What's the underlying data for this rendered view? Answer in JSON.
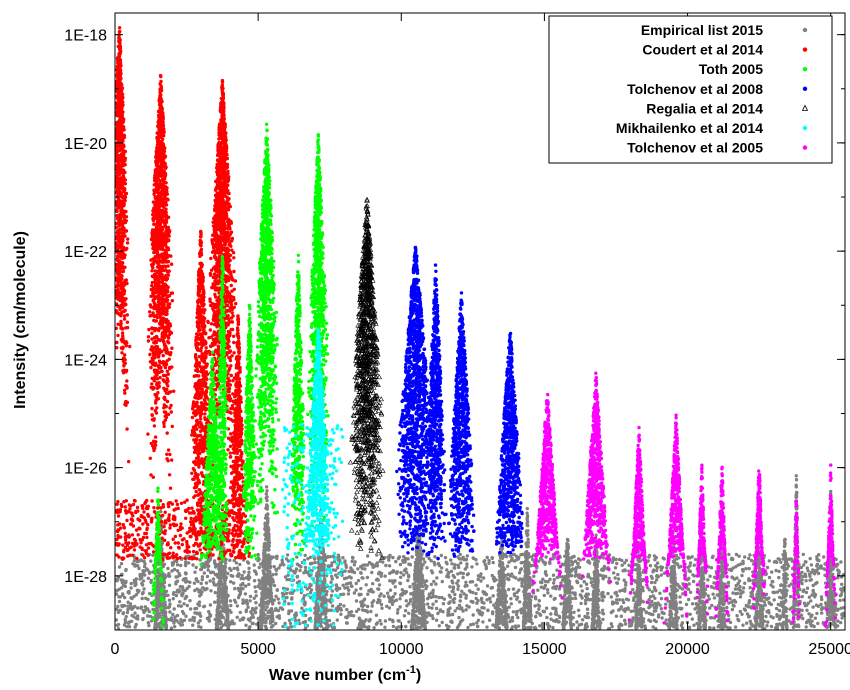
{
  "chart_data": {
    "type": "scatter",
    "title": "",
    "xlabel": "Wave number (cm",
    "xlabel_sup": "-1",
    "xlabel_end": ")",
    "ylabel": "Intensity (cm/molecule)",
    "xlim": [
      0,
      25500
    ],
    "ylim_log10": [
      -29,
      -17.6
    ],
    "y_scale": "log",
    "x_ticks": [
      0,
      5000,
      10000,
      15000,
      20000,
      25000
    ],
    "x_tick_labels": [
      "0",
      "5000",
      "10000",
      "15000",
      "20000",
      "25000"
    ],
    "y_ticks_log10": [
      -18,
      -20,
      -22,
      -24,
      -26,
      -28
    ],
    "y_tick_labels": [
      "1E-18",
      "1E-20",
      "1E-22",
      "1E-24",
      "1E-26",
      "1E-28"
    ],
    "grid": false,
    "legend_position": "top-right",
    "series": [
      {
        "name": "Empirical list 2015",
        "color": "#808080",
        "marker": "circle",
        "floor_region": [
          [
            0,
            27000,
            -29,
            -27.6
          ]
        ],
        "bands": [
          {
            "center": 1595,
            "peak_log10": -26.6,
            "width": 700
          },
          {
            "center": 3750,
            "peak_log10": -26.8,
            "width": 800
          },
          {
            "center": 5300,
            "peak_log10": -26.3,
            "width": 700
          },
          {
            "center": 7200,
            "peak_log10": -26.5,
            "width": 700
          },
          {
            "center": 10600,
            "peak_log10": -26.8,
            "width": 900
          },
          {
            "center": 13500,
            "peak_log10": -27.2,
            "width": 900
          },
          {
            "center": 14400,
            "peak_log10": -26.7,
            "width": 500
          },
          {
            "center": 15800,
            "peak_log10": -27.0,
            "width": 600
          },
          {
            "center": 16800,
            "peak_log10": -27.1,
            "width": 600
          },
          {
            "center": 18300,
            "peak_log10": -27.2,
            "width": 500
          },
          {
            "center": 19500,
            "peak_log10": -27.1,
            "width": 600
          },
          {
            "center": 20500,
            "peak_log10": -27.0,
            "width": 500
          },
          {
            "center": 21200,
            "peak_log10": -26.9,
            "width": 400
          },
          {
            "center": 22500,
            "peak_log10": -26.9,
            "width": 500
          },
          {
            "center": 23400,
            "peak_log10": -27.0,
            "width": 300
          },
          {
            "center": 23800,
            "peak_log10": -26.0,
            "width": 300
          },
          {
            "center": 25000,
            "peak_log10": -26.3,
            "width": 400
          }
        ]
      },
      {
        "name": "Coudert et al 2014",
        "color": "#ff0000",
        "marker": "circle",
        "floor_region": [
          [
            0,
            4700,
            -27.7,
            -26.6
          ]
        ],
        "bands": [
          {
            "center": 150,
            "peak_log10": -17.7,
            "width": 700
          },
          {
            "center": 1595,
            "peak_log10": -18.7,
            "width": 900
          },
          {
            "center": 3750,
            "peak_log10": -18.8,
            "width": 1000
          },
          {
            "center": 3000,
            "peak_log10": -21.5,
            "width": 700
          },
          {
            "center": 4300,
            "peak_log10": -23.0,
            "width": 500
          }
        ]
      },
      {
        "name": "Toth 2005",
        "color": "#00ff00",
        "marker": "circle",
        "floor_region": [],
        "bands": [
          {
            "center": 1500,
            "peak_log10": -26.3,
            "width": 450
          },
          {
            "center": 3400,
            "peak_log10": -23.8,
            "width": 800
          },
          {
            "center": 3750,
            "peak_log10": -21.8,
            "width": 400
          },
          {
            "center": 5300,
            "peak_log10": -19.6,
            "width": 800
          },
          {
            "center": 4700,
            "peak_log10": -22.8,
            "width": 500
          },
          {
            "center": 7100,
            "peak_log10": -19.8,
            "width": 700
          },
          {
            "center": 6400,
            "peak_log10": -22.0,
            "width": 500
          }
        ]
      },
      {
        "name": "Tolchenov et al 2008",
        "color": "#0000ff",
        "marker": "circle",
        "floor_region": [],
        "bands": [
          {
            "center": 10500,
            "peak_log10": -21.8,
            "width": 1300
          },
          {
            "center": 12100,
            "peak_log10": -22.7,
            "width": 900
          },
          {
            "center": 13800,
            "peak_log10": -23.3,
            "width": 1000
          },
          {
            "center": 11200,
            "peak_log10": -22.2,
            "width": 700
          }
        ]
      },
      {
        "name": "Regalia et al 2014",
        "color": "#000000",
        "marker": "triangle",
        "floor_region": [],
        "bands": [
          {
            "center": 8800,
            "peak_log10": -21.0,
            "width": 1100
          }
        ]
      },
      {
        "name": "Mikhailenko et al 2014",
        "color": "#00ffff",
        "marker": "circle",
        "floor_region": [
          [
            5850,
            7950,
            -29,
            -25.2
          ]
        ],
        "bands": [
          {
            "center": 7100,
            "peak_log10": -23.2,
            "width": 900
          }
        ]
      },
      {
        "name": "Tolchenov et al 2005",
        "color": "#ff00ff",
        "marker": "circle",
        "floor_region": [],
        "bands": [
          {
            "center": 15100,
            "peak_log10": -24.5,
            "width": 1000
          },
          {
            "center": 16800,
            "peak_log10": -24.2,
            "width": 1000
          },
          {
            "center": 18300,
            "peak_log10": -25.2,
            "width": 700
          },
          {
            "center": 19600,
            "peak_log10": -25.0,
            "width": 800
          },
          {
            "center": 20500,
            "peak_log10": -25.9,
            "width": 500
          },
          {
            "center": 21200,
            "peak_log10": -25.8,
            "width": 500
          },
          {
            "center": 22500,
            "peak_log10": -25.8,
            "width": 500
          },
          {
            "center": 23800,
            "peak_log10": -26.5,
            "width": 300
          },
          {
            "center": 25000,
            "peak_log10": -25.9,
            "width": 400
          }
        ]
      }
    ]
  }
}
